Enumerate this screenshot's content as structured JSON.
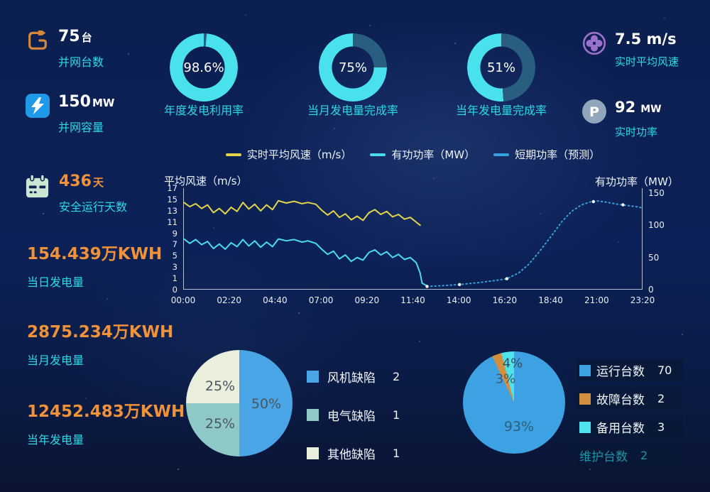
{
  "colors": {
    "background_top": "#0b1f50",
    "background_bottom": "#0b1433",
    "accent_cyan": "#2bd9e6",
    "accent_orange": "#f0923a",
    "white": "#f2f6fc",
    "donut_value": "#49e1ec",
    "donut_rest": "#2a5e80",
    "axis_line": "#d2dcf0"
  },
  "stats_left": [
    {
      "value": "75",
      "unit": "台",
      "label": "并网台数",
      "icon": "plug-cable-icon",
      "icon_color": "#d4893a"
    },
    {
      "value": "150",
      "unit": "MW",
      "label": "并网容量",
      "icon": "lightning-icon",
      "icon_color": "#1f99e8"
    },
    {
      "value": "436",
      "unit": "天",
      "label": "安全运行天数",
      "icon": "calendar-icon",
      "icon_color": "#cde6d2"
    }
  ],
  "energy_stats": [
    {
      "value": "154.439万KWH",
      "label": "当日发电量"
    },
    {
      "value": "2875.234万KWH",
      "label": "当月发电量"
    },
    {
      "value": "12452.483万KWH",
      "label": "当年发电量"
    }
  ],
  "donuts": [
    {
      "percent": 98.6,
      "display": "98.6%",
      "label": "年度发电利用率"
    },
    {
      "percent": 75,
      "display": "75%",
      "label": "当月发电量完成率"
    },
    {
      "percent": 51,
      "display": "51%",
      "label": "当年发电量完成率"
    }
  ],
  "stats_right": [
    {
      "value": "7.5 m/s",
      "unit": "",
      "label": "实时平均风速",
      "icon": "fan-icon",
      "icon_color": "#9a71cc"
    },
    {
      "value": "92",
      "unit": "MW",
      "label": "实时功率",
      "icon": "power-p-icon",
      "icon_color": "#92a6bb"
    }
  ],
  "chart_data": [
    {
      "id": "power_wind_curve",
      "type": "line",
      "x_ticks": [
        "00:00",
        "02:20",
        "04:40",
        "07:00",
        "09:20",
        "11:40",
        "14:00",
        "16:20",
        "18:40",
        "21:00",
        "23:20"
      ],
      "x_range_hours": [
        0,
        23.333
      ],
      "left_axis": {
        "title": "平均风速（m/s）",
        "ticks": [
          0,
          1,
          3,
          5,
          7,
          9,
          11,
          13,
          15,
          17
        ],
        "range": [
          0,
          17
        ]
      },
      "right_axis": {
        "title": "有功功率（MW）",
        "ticks": [
          0,
          50,
          100,
          150
        ],
        "range": [
          0,
          158
        ]
      },
      "legend": [
        {
          "label": "实时平均风速（m/s）",
          "color": "#e3d44a"
        },
        {
          "label": "有功功率（MW）",
          "color": "#49dcec"
        },
        {
          "label": "短期功率（预测）",
          "color": "#35a2e0"
        }
      ],
      "series": [
        {
          "name": "实时平均风速（m/s）",
          "axis": "left",
          "style": "solid",
          "color": "#e3d44a",
          "points": [
            [
              0,
              14.6
            ],
            [
              0.3,
              13.9
            ],
            [
              0.6,
              14.4
            ],
            [
              0.9,
              13.6
            ],
            [
              1.2,
              14.2
            ],
            [
              1.5,
              12.9
            ],
            [
              1.8,
              13.6
            ],
            [
              2.1,
              12.7
            ],
            [
              2.4,
              13.8
            ],
            [
              2.7,
              13.1
            ],
            [
              3.0,
              14.6
            ],
            [
              3.3,
              13.5
            ],
            [
              3.6,
              14.3
            ],
            [
              3.9,
              13.2
            ],
            [
              4.2,
              14.2
            ],
            [
              4.5,
              13.4
            ],
            [
              4.8,
              14.9
            ],
            [
              5.2,
              14.5
            ],
            [
              5.6,
              14.8
            ],
            [
              6.0,
              14.4
            ],
            [
              6.3,
              14.6
            ],
            [
              6.7,
              14.3
            ],
            [
              7.0,
              13.3
            ],
            [
              7.3,
              12.5
            ],
            [
              7.6,
              13.2
            ],
            [
              7.9,
              12.1
            ],
            [
              8.2,
              12.7
            ],
            [
              8.5,
              11.7
            ],
            [
              8.8,
              12.3
            ],
            [
              9.1,
              11.6
            ],
            [
              9.4,
              12.9
            ],
            [
              9.7,
              13.4
            ],
            [
              10.0,
              12.6
            ],
            [
              10.3,
              13.1
            ],
            [
              10.6,
              12.2
            ],
            [
              10.9,
              12.6
            ],
            [
              11.2,
              11.8
            ],
            [
              11.5,
              12.1
            ],
            [
              11.8,
              11.3
            ],
            [
              12.0,
              10.8
            ]
          ]
        },
        {
          "name": "有功功率（MW）",
          "axis": "right",
          "style": "solid",
          "color": "#49dcec",
          "points": [
            [
              0,
              79
            ],
            [
              0.3,
              72
            ],
            [
              0.6,
              78
            ],
            [
              0.9,
              70
            ],
            [
              1.2,
              75
            ],
            [
              1.5,
              64
            ],
            [
              1.8,
              71
            ],
            [
              2.1,
              63
            ],
            [
              2.4,
              73
            ],
            [
              2.7,
              67
            ],
            [
              3.0,
              78
            ],
            [
              3.3,
              68
            ],
            [
              3.6,
              76
            ],
            [
              3.9,
              66
            ],
            [
              4.2,
              74
            ],
            [
              4.5,
              67
            ],
            [
              4.8,
              79
            ],
            [
              5.2,
              76
            ],
            [
              5.6,
              78
            ],
            [
              6.0,
              74
            ],
            [
              6.3,
              76
            ],
            [
              6.7,
              72
            ],
            [
              7.0,
              63
            ],
            [
              7.3,
              55
            ],
            [
              7.6,
              60
            ],
            [
              7.9,
              48
            ],
            [
              8.2,
              54
            ],
            [
              8.5,
              44
            ],
            [
              8.8,
              50
            ],
            [
              9.1,
              46
            ],
            [
              9.4,
              58
            ],
            [
              9.7,
              62
            ],
            [
              10.0,
              54
            ],
            [
              10.3,
              59
            ],
            [
              10.6,
              50
            ],
            [
              10.9,
              55
            ],
            [
              11.2,
              47
            ],
            [
              11.5,
              50
            ],
            [
              11.8,
              42
            ],
            [
              12.0,
              26
            ],
            [
              12.1,
              10
            ],
            [
              12.35,
              6
            ]
          ]
        },
        {
          "name": "短期功率（预测）",
          "axis": "right",
          "style": "dotted",
          "color": "#35a2e0",
          "points": [
            [
              12.35,
              5
            ],
            [
              13.0,
              6
            ],
            [
              14.0,
              8
            ],
            [
              15.0,
              11
            ],
            [
              16.0,
              15
            ],
            [
              16.4,
              17
            ],
            [
              17.0,
              26
            ],
            [
              17.5,
              39
            ],
            [
              18.0,
              57
            ],
            [
              18.7,
              85
            ],
            [
              19.2,
              106
            ],
            [
              19.7,
              122
            ],
            [
              20.2,
              132
            ],
            [
              20.7,
              137
            ],
            [
              21.0,
              138
            ],
            [
              21.5,
              136
            ],
            [
              22.0,
              133
            ],
            [
              22.5,
              131
            ],
            [
              23.0,
              129
            ],
            [
              23.33,
              127
            ]
          ],
          "markers": [
            [
              12.35,
              5
            ],
            [
              14.0,
              8
            ],
            [
              16.4,
              17
            ],
            [
              20.8,
              137
            ],
            [
              22.3,
              132
            ]
          ]
        }
      ]
    },
    {
      "id": "defect_pie",
      "type": "pie",
      "slices": [
        {
          "label": "风机缺陷",
          "value": 2,
          "percent": 50,
          "color": "#49a5e5",
          "label_color": "#4a5560"
        },
        {
          "label": "电气缺陷",
          "value": 1,
          "percent": 25,
          "color": "#8fc9c7",
          "label_color": "#4a5560"
        },
        {
          "label": "其他缺陷",
          "value": 1,
          "percent": 25,
          "color": "#e9efdb",
          "label_color": "#4a5560"
        }
      ]
    },
    {
      "id": "unit_status_pie",
      "type": "pie",
      "slices": [
        {
          "label": "运行台数",
          "value": 70,
          "percent": 93,
          "color": "#3ca2e3",
          "label_color": "#2e5f78"
        },
        {
          "label": "故障台数",
          "value": 2,
          "percent": 3,
          "color": "#d2903f",
          "label_color": "#4a5560"
        },
        {
          "label": "备用台数",
          "value": 3,
          "percent": 4,
          "color": "#4ee2ec",
          "label_color": "#3a4a55"
        }
      ],
      "legend_extra": {
        "label": "维护台数",
        "value": 2,
        "selected": false
      }
    }
  ]
}
